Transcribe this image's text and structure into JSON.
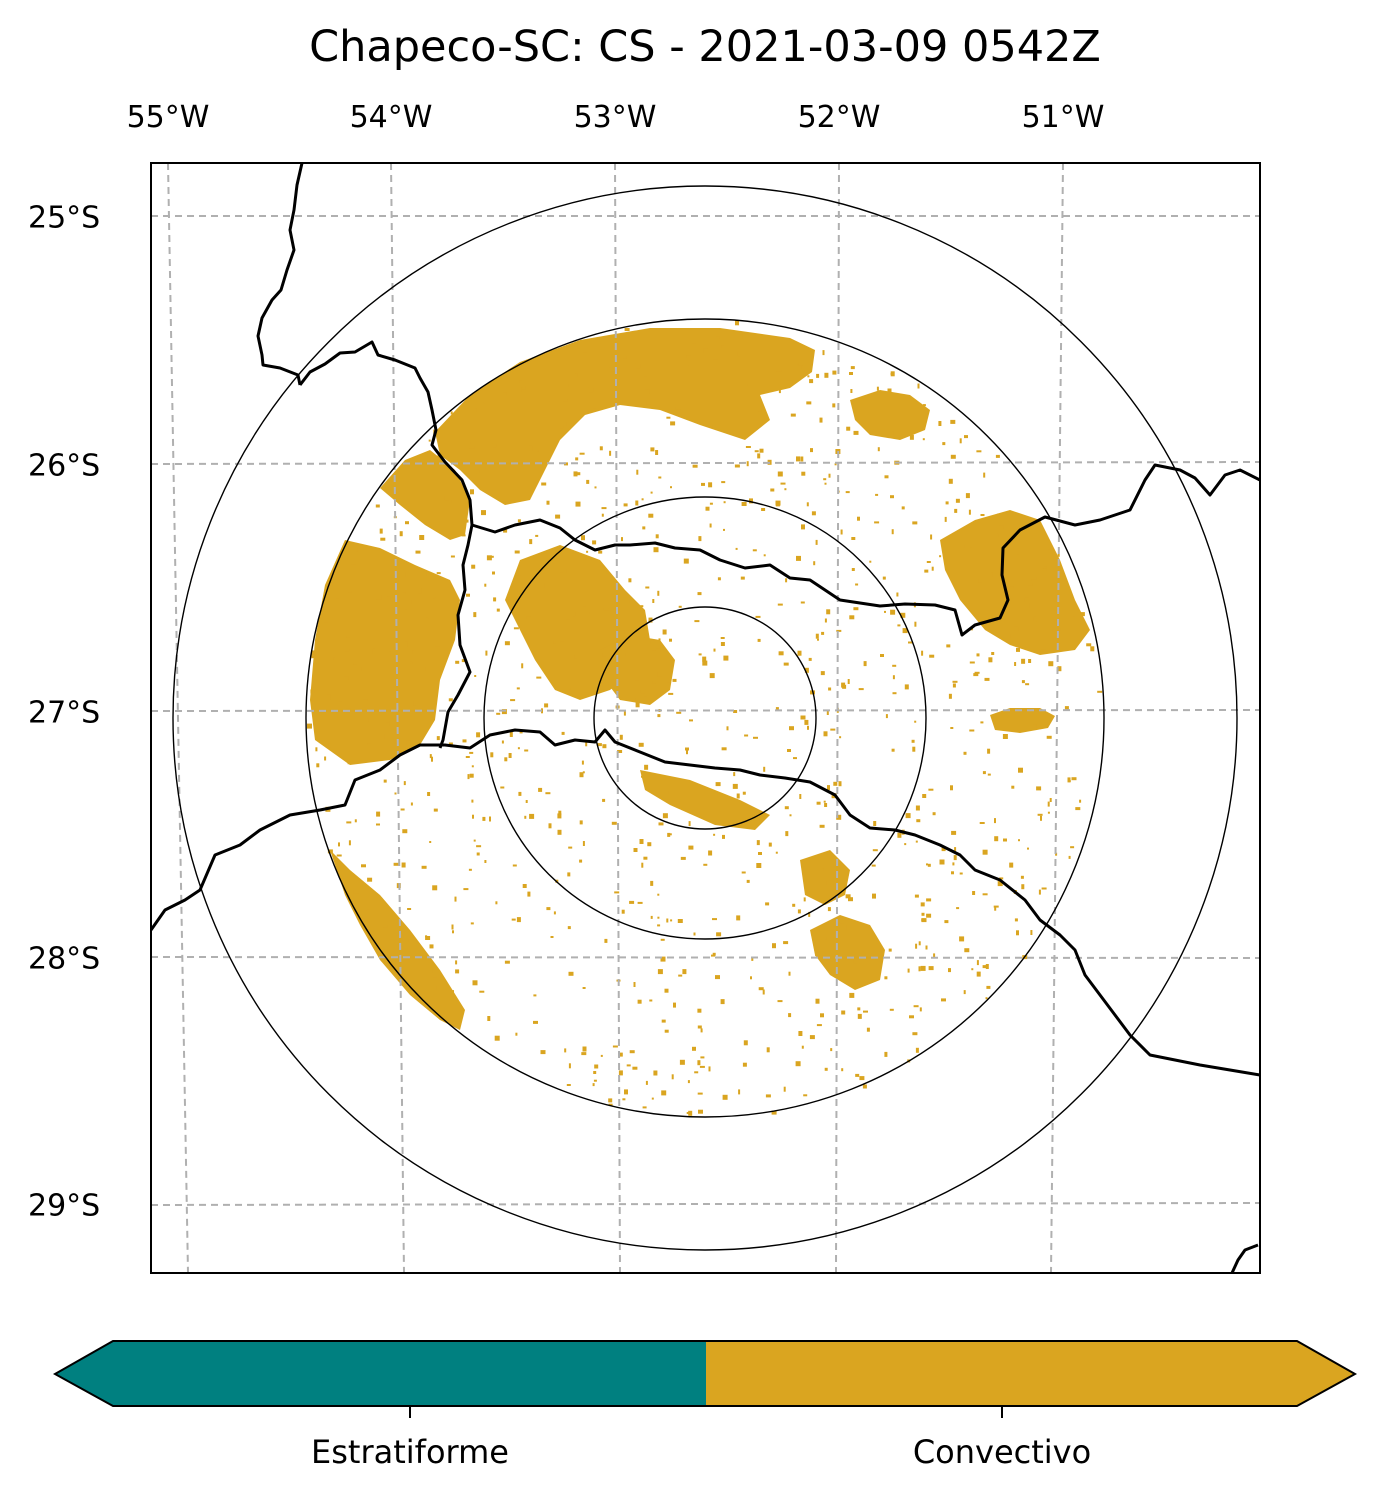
{
  "title": "Chapeco-SC: CS - 2021-03-09 0542Z",
  "lon_ticks": [
    "55°W",
    "54°W",
    "53°W",
    "52°W",
    "51°W"
  ],
  "lat_ticks": [
    "25°S",
    "26°S",
    "27°S",
    "28°S",
    "29°S"
  ],
  "extent": {
    "lon": [
      -55.1,
      -50.1
    ],
    "lat": [
      -29.25,
      -24.8
    ]
  },
  "radar_center": {
    "lon": -52.6,
    "lat": -27.03
  },
  "grid": true,
  "colorbar": {
    "categories": [
      {
        "label": "Estratiforme",
        "color": "#008080"
      },
      {
        "label": "Convectivo",
        "color": "#DAA520"
      }
    ],
    "extend": "both"
  },
  "colors": {
    "stratiform": "#008080",
    "convective": "#DAA520",
    "grid": "#b0b0b0",
    "border": "#000000"
  }
}
